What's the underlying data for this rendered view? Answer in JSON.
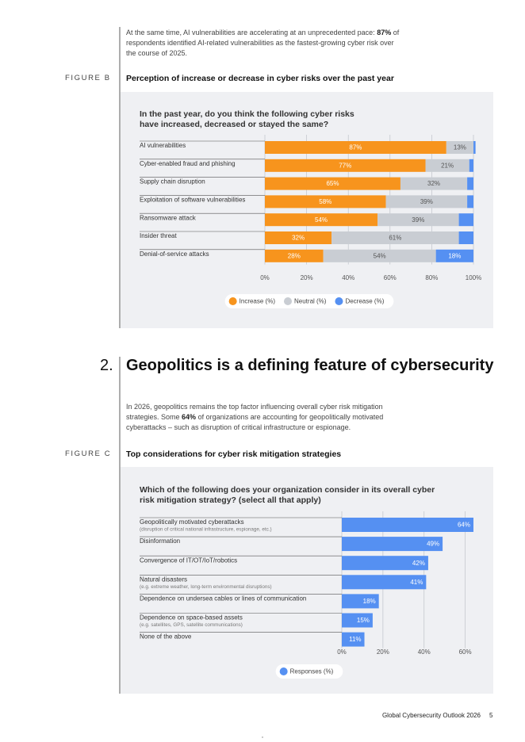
{
  "intro": {
    "before": "At the same time, AI vulnerabilities are accelerating at an unprecedented pace:",
    "bold": "87%",
    "after": "of respondents identified AI-related vulnerabilities as the fastest-growing cyber risk over the course of 2025."
  },
  "figure_b": {
    "label": "FIGURE B",
    "title": "Perception of increase or decrease in cyber risks over the past year"
  },
  "section": {
    "number": "2.",
    "title": "Geopolitics is a defining feature of cybersecurity"
  },
  "paragraph": {
    "before": "In 2026, geopolitics remains the top factor influencing overall cyber risk mitigation strategies. Some",
    "bold": "64%",
    "after": "of organizations are accounting for geopolitically motivated cyberattacks – such as disruption of critical infrastructure or espionage."
  },
  "figure_c": {
    "label": "FIGURE C",
    "title": "Top considerations for cyber risk mitigation strategies"
  },
  "footer": {
    "text": "Global Cybersecurity Outlook 2026",
    "page": 5
  },
  "chart_data": [
    {
      "type": "bar",
      "orientation": "horizontal",
      "stacked": true,
      "title": "In the past year, do you think the following cyber risks have increased, decreased or stayed the same?",
      "categories": [
        "AI vulnerabilities",
        "Cyber-enabled fraud and phishing",
        "Supply chain disruption",
        "Exploitation of software vulnerabilities",
        "Ransomware attack",
        "Insider threat",
        "Denial-of-service attacks"
      ],
      "series": [
        {
          "name": "Increase (%)",
          "color": "#f7941d",
          "values": [
            87,
            77,
            65,
            58,
            54,
            32,
            28
          ],
          "value_labels": [
            "87%",
            "77%",
            "65%",
            "58%",
            "54%",
            "32%",
            "28%"
          ]
        },
        {
          "name": "Neutral (%)",
          "color": "#c9cdd3",
          "values": [
            13,
            21,
            32,
            39,
            39,
            61,
            54
          ],
          "value_labels": [
            "13%",
            "21%",
            "32%",
            "39%",
            "39%",
            "61%",
            "54%"
          ]
        },
        {
          "name": "Decrease (%)",
          "color": "#5590f2",
          "values": [
            1,
            2,
            3,
            3,
            7,
            7,
            18
          ],
          "value_labels": [
            null,
            null,
            null,
            null,
            null,
            null,
            "18%"
          ]
        }
      ],
      "xlim": [
        0,
        100
      ],
      "xticks": [
        {
          "value": 0,
          "label": "0%"
        },
        {
          "value": 20,
          "label": "20%"
        },
        {
          "value": 40,
          "label": "40%"
        },
        {
          "value": 60,
          "label": "60%"
        },
        {
          "value": 80,
          "label": "80%"
        },
        {
          "value": 100,
          "label": "100%"
        }
      ],
      "grid": true,
      "legend": "bottom"
    },
    {
      "type": "bar",
      "orientation": "horizontal",
      "stacked": false,
      "title": "Which of the following does your organization consider in its overall cyber risk mitigation strategy? (select all that apply)",
      "categories": [
        "Geopolitically motivated cyberattacks",
        "Disinformation",
        "Convergence of IT/OT/IoT/robotics",
        "Natural disasters",
        "Dependence on undersea cables or lines of communication",
        "Dependence on space-based assets",
        "None of the above"
      ],
      "sublabels": [
        "(disruption of critical national infrastructure, espionage, etc.)",
        null,
        null,
        "(e.g. extreme weather, long-term environmental disruptions)",
        null,
        "(e.g. satellites, GPS, satellite communications)",
        null
      ],
      "series": [
        {
          "name": "Responses (%)",
          "color": "#5590f2",
          "values": [
            64,
            49,
            42,
            41,
            18,
            15,
            11
          ],
          "value_labels": [
            "64%",
            "49%",
            "42%",
            "41%",
            "18%",
            "15%",
            "11%"
          ]
        }
      ],
      "xlim": [
        0,
        64
      ],
      "xticks": [
        {
          "value": 0,
          "label": "0%"
        },
        {
          "value": 20,
          "label": "20%"
        },
        {
          "value": 40,
          "label": "40%"
        },
        {
          "value": 60,
          "label": "60%"
        }
      ],
      "grid": true,
      "legend": "bottom"
    }
  ]
}
